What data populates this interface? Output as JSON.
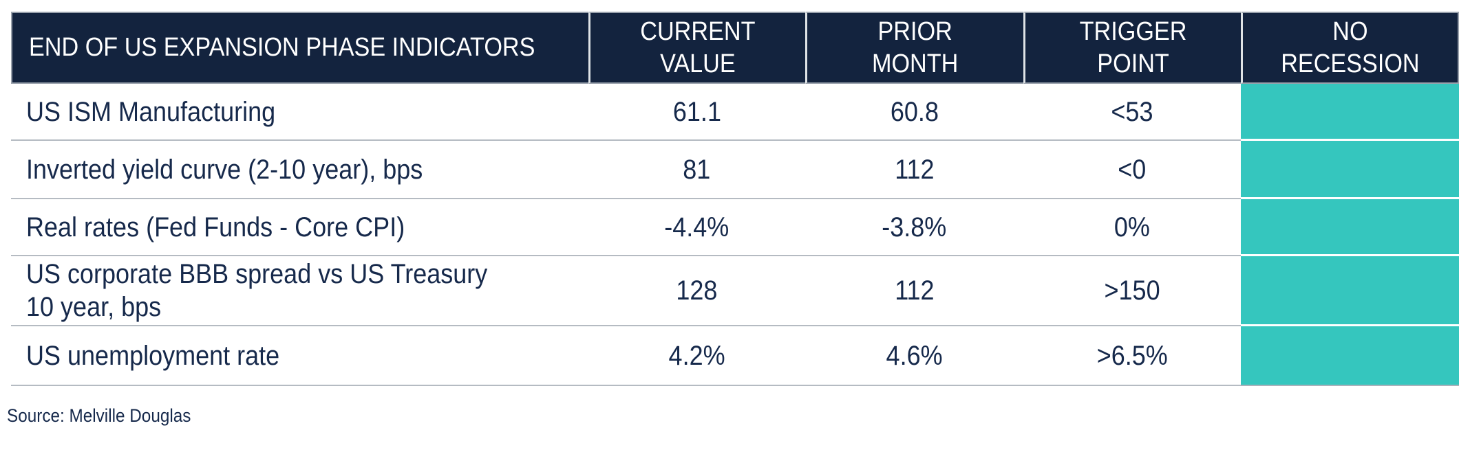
{
  "table": {
    "headers": {
      "indicators": "END OF US EXPANSION PHASE INDICATORS",
      "current_value": "CURRENT\nVALUE",
      "prior_month": "PRIOR\nMONTH",
      "trigger_point": "TRIGGER\nPOINT",
      "no_recession": "NO\nRECESSION"
    },
    "rows": [
      {
        "indicator": "US ISM Manufacturing",
        "current_value": "61.1",
        "prior_month": "60.8",
        "trigger_point": "<53",
        "status": "no-recession"
      },
      {
        "indicator": "Inverted yield curve (2-10 year), bps",
        "current_value": "81",
        "prior_month": "112",
        "trigger_point": "<0",
        "status": "no-recession"
      },
      {
        "indicator": "Real rates (Fed Funds - Core CPI)",
        "current_value": "-4.4%",
        "prior_month": "-3.8%",
        "trigger_point": "0%",
        "status": "no-recession"
      },
      {
        "indicator": "US corporate BBB spread vs US Treasury\n10 year, bps",
        "current_value": "128",
        "prior_month": "112",
        "trigger_point": ">150",
        "status": "no-recession"
      },
      {
        "indicator": "US unemployment rate",
        "current_value": "4.2%",
        "prior_month": "4.6%",
        "trigger_point": ">6.5%",
        "status": "no-recession"
      }
    ]
  },
  "source": "Source: Melville Douglas",
  "colors": {
    "header_navy": "#13233e",
    "body_text_navy": "#16294b",
    "no_recession_teal": "#35c6be",
    "row_divider_grey": "#b5bbc2"
  }
}
